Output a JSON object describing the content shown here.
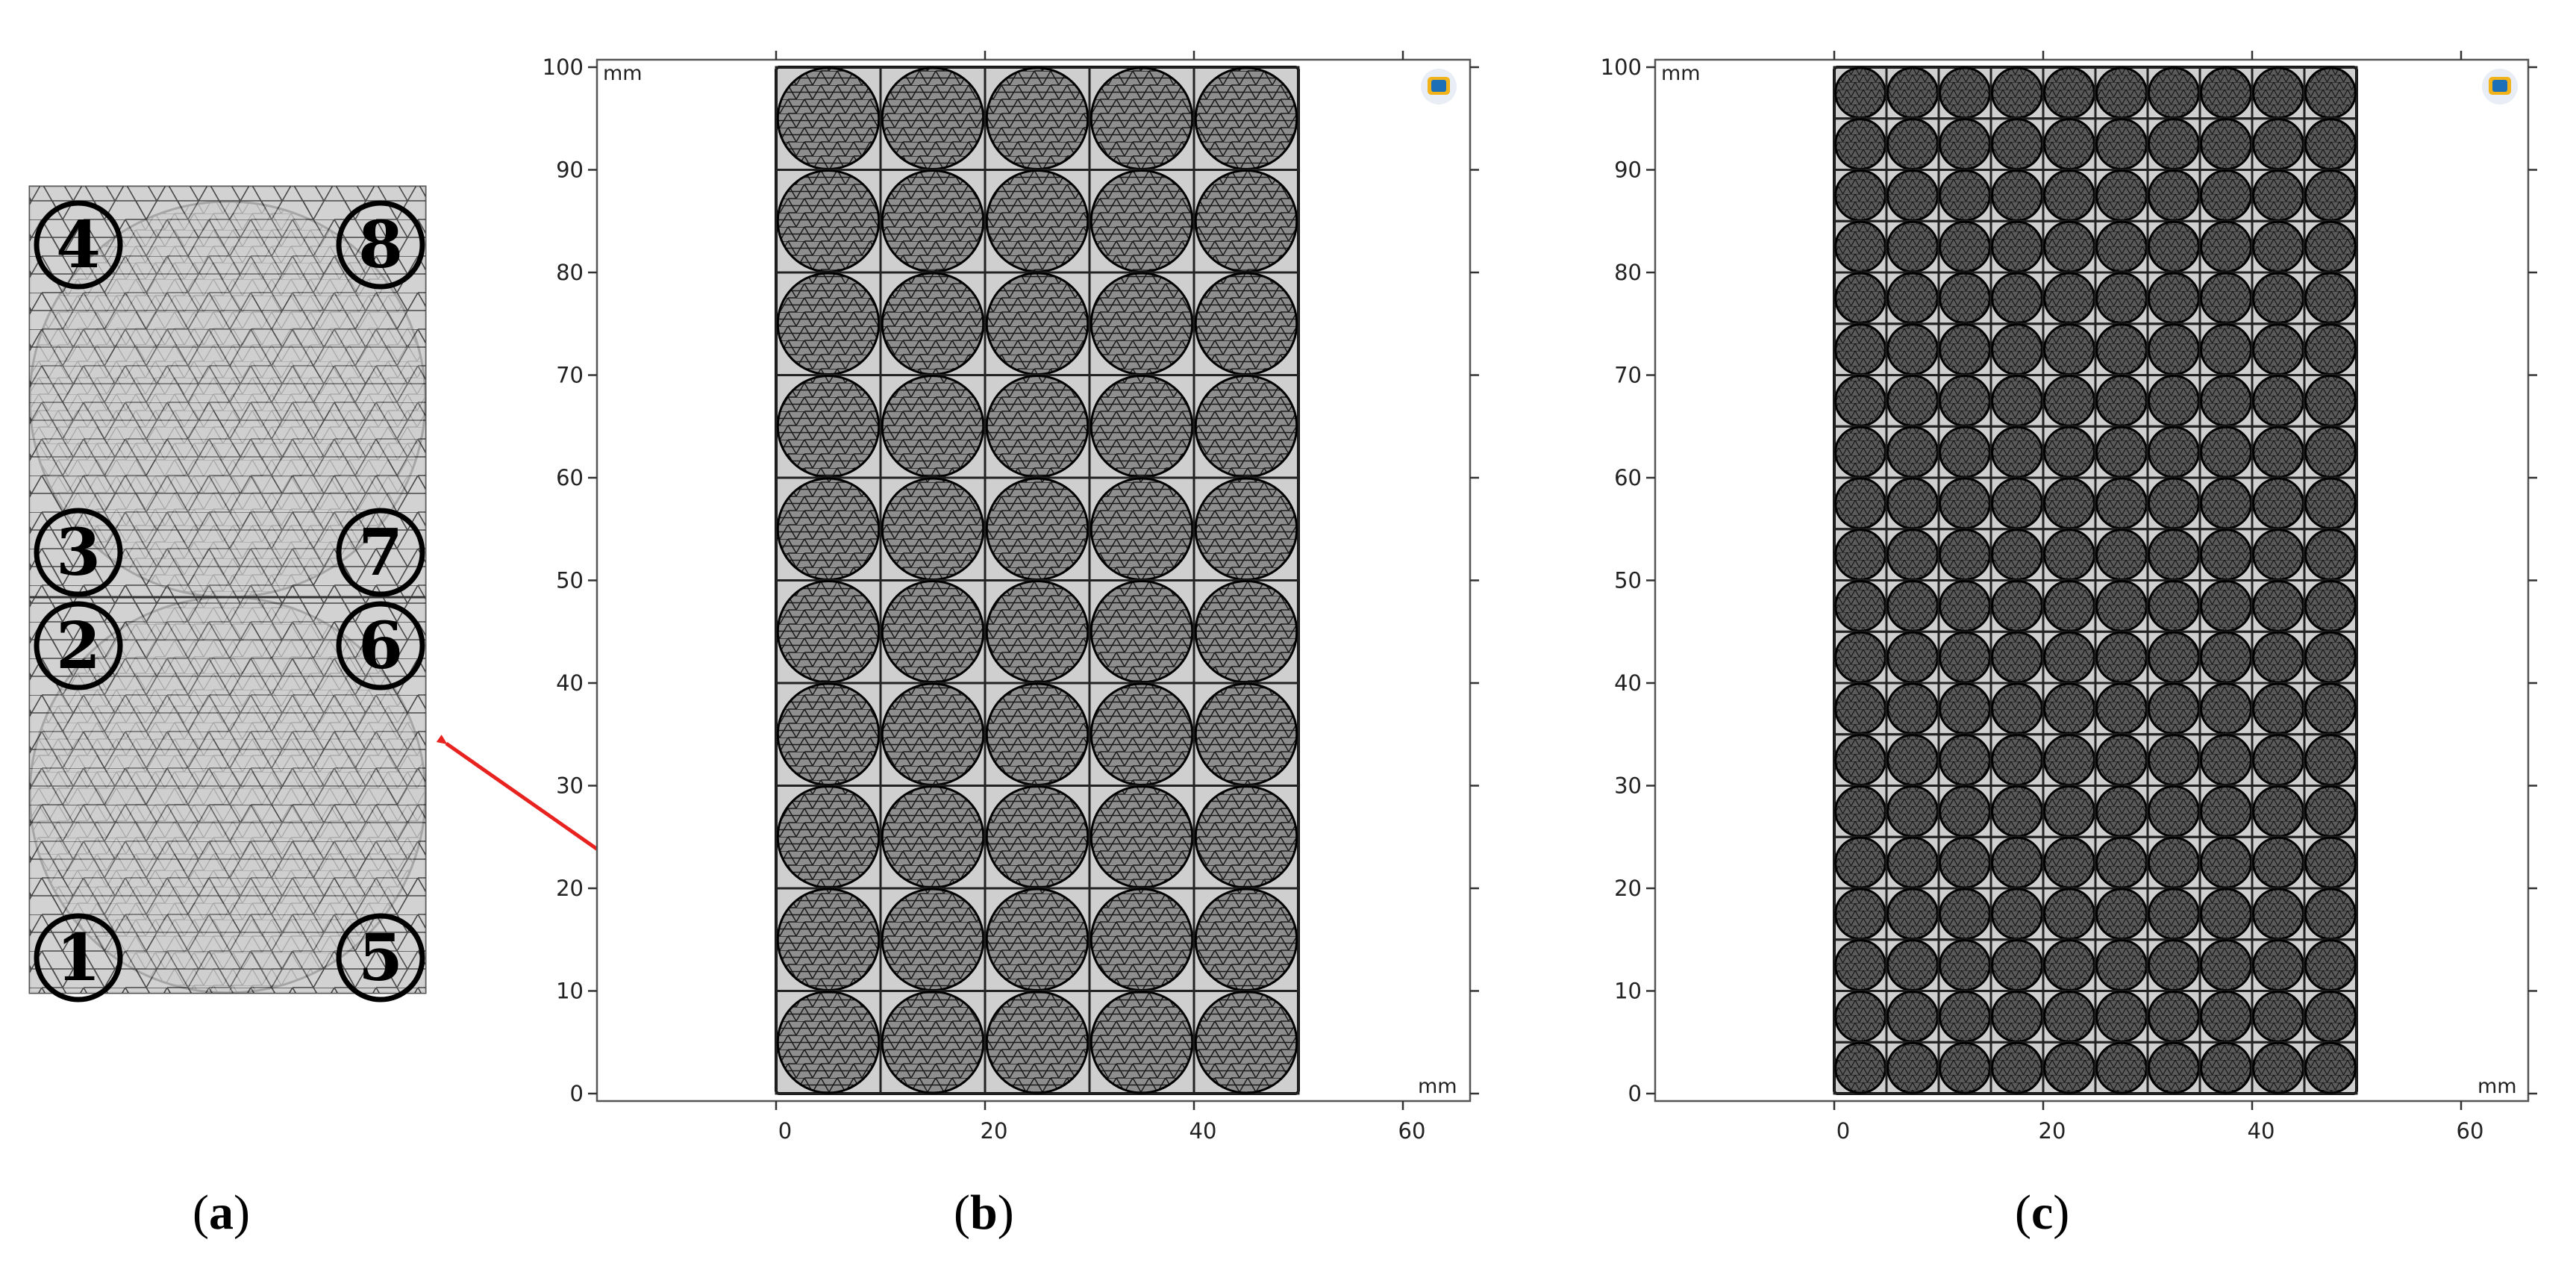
{
  "panels": {
    "a": {
      "caption_letter": "a",
      "node_numbers": [
        "1",
        "2",
        "3",
        "4",
        "5",
        "6",
        "7",
        "8"
      ]
    },
    "b": {
      "caption_letter": "b",
      "x_unit": "mm",
      "y_unit": "mm",
      "x_ticks": [
        "0",
        "20",
        "40",
        "60"
      ],
      "y_ticks": [
        "0",
        "10",
        "20",
        "30",
        "40",
        "50",
        "60",
        "70",
        "80",
        "90",
        "100"
      ],
      "grid": {
        "cols": 5,
        "rows": 10
      },
      "domain_mm": {
        "width": 50,
        "height": 100
      }
    },
    "c": {
      "caption_letter": "c",
      "x_unit": "mm",
      "y_unit": "mm",
      "x_ticks": [
        "0",
        "20",
        "40",
        "60"
      ],
      "y_ticks": [
        "0",
        "10",
        "20",
        "30",
        "40",
        "50",
        "60",
        "70",
        "80",
        "90",
        "100"
      ],
      "grid": {
        "cols": 10,
        "rows": 20
      },
      "domain_mm": {
        "width": 50,
        "height": 100
      }
    }
  },
  "colors": {
    "arrow": "#e8231f",
    "mesh_fill": "#cfcfcf",
    "mesh_line": "#222222",
    "domain_outline": "#000000"
  },
  "icons": {
    "logo": "comsol-logo-icon"
  }
}
